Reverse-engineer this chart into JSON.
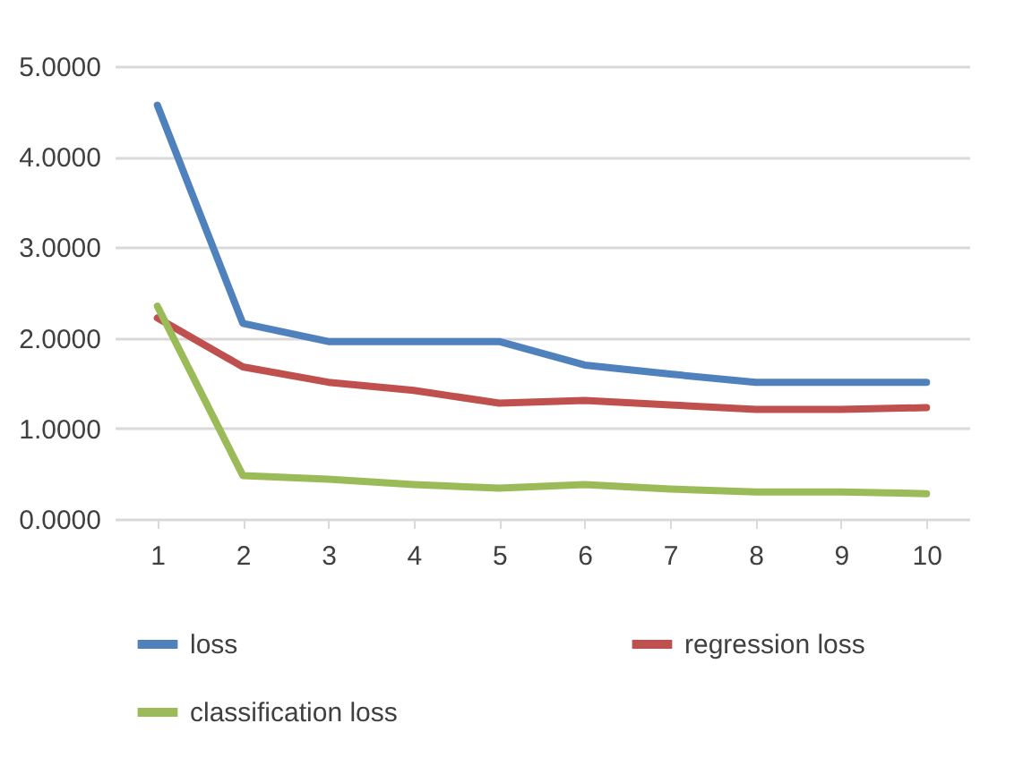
{
  "chart_data": {
    "type": "line",
    "categories": [
      "1",
      "2",
      "3",
      "4",
      "5",
      "6",
      "7",
      "8",
      "9",
      "10"
    ],
    "series": [
      {
        "name": "loss",
        "color": "#4f81bd",
        "values": [
          4.57,
          2.16,
          1.96,
          1.96,
          1.96,
          1.7,
          1.6,
          1.51,
          1.51,
          1.51
        ]
      },
      {
        "name": "regression loss",
        "color": "#c0504d",
        "values": [
          2.22,
          1.68,
          1.51,
          1.42,
          1.28,
          1.31,
          1.26,
          1.21,
          1.21,
          1.23
        ]
      },
      {
        "name": "classification loss",
        "color": "#9bbb59",
        "values": [
          2.35,
          0.48,
          0.44,
          0.38,
          0.34,
          0.38,
          0.33,
          0.3,
          0.3,
          0.28
        ]
      }
    ],
    "ylim": [
      0,
      5
    ],
    "yticks": [
      {
        "value": 0,
        "label": "0.0000"
      },
      {
        "value": 1,
        "label": "1.0000"
      },
      {
        "value": 2,
        "label": "2.0000"
      },
      {
        "value": 3,
        "label": "3.0000"
      },
      {
        "value": 4,
        "label": "4.0000"
      },
      {
        "value": 5,
        "label": "5.0000"
      }
    ],
    "grid": "y",
    "legend": "bottom",
    "line_style": "solid"
  }
}
